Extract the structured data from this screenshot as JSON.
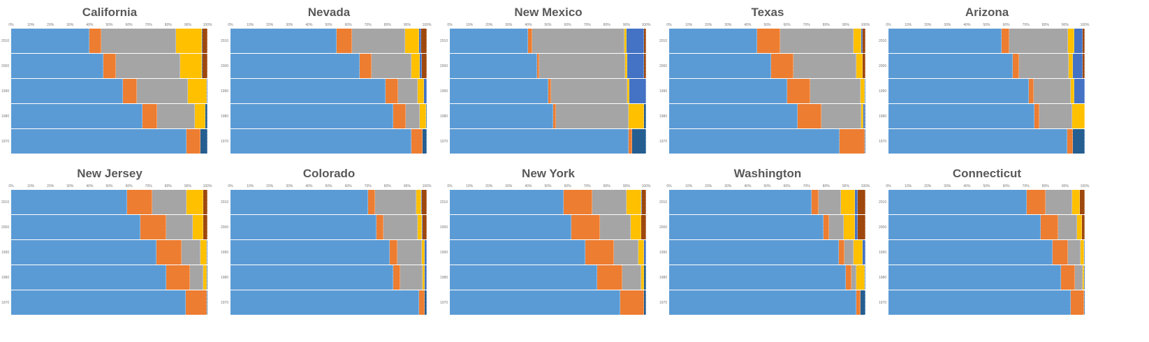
{
  "colors": [
    "#5B9BD5",
    "#ED7D31",
    "#A5A5A5",
    "#FFC000",
    "#4472C4",
    "#255E91",
    "#9E480E"
  ],
  "chart_data": {
    "type": "bar",
    "stacked": "percent",
    "orientation": "horizontal",
    "x_ticks": [
      "0%",
      "10%",
      "20%",
      "30%",
      "40%",
      "50%",
      "60%",
      "70%",
      "80%",
      "90%",
      "100%"
    ],
    "categories": [
      "2010",
      "2000",
      "1990",
      "1980",
      "1970"
    ],
    "charts": [
      {
        "title": "California",
        "values": [
          [
            40,
            6,
            38,
            13,
            0,
            0.5,
            2.5
          ],
          [
            47,
            6.5,
            32.5,
            11,
            0,
            0.5,
            2.5
          ],
          [
            57,
            7,
            26,
            9.5,
            0.5,
            0,
            0
          ],
          [
            66.5,
            7.5,
            19,
            5.5,
            0,
            1,
            0
          ],
          [
            89.5,
            7,
            0,
            0,
            0,
            3.5,
            0
          ]
        ]
      },
      {
        "title": "Nevada",
        "values": [
          [
            54,
            8,
            27,
            7,
            1,
            0,
            3
          ],
          [
            66,
            6,
            20,
            4.5,
            1,
            0,
            2.5
          ],
          [
            79,
            6.5,
            10,
            3,
            1.5,
            0,
            0
          ],
          [
            83,
            6.5,
            7,
            3,
            0,
            0.5,
            0
          ],
          [
            92,
            6,
            0,
            0,
            0,
            2,
            0
          ]
        ]
      },
      {
        "title": "New Mexico",
        "values": [
          [
            40,
            2,
            47,
            1,
            9,
            0,
            1
          ],
          [
            44.5,
            1,
            44,
            1,
            8.5,
            0,
            1
          ],
          [
            50,
            1.5,
            39,
            1,
            8.5,
            0,
            0
          ],
          [
            52.5,
            1.5,
            37,
            8,
            0,
            1,
            0
          ],
          [
            91,
            2,
            0,
            0,
            0,
            7,
            0
          ]
        ]
      },
      {
        "title": "Texas",
        "values": [
          [
            45,
            11.5,
            37.5,
            4,
            0.5,
            0,
            1.5
          ],
          [
            52,
            11.5,
            32,
            3,
            0,
            0,
            1.5
          ],
          [
            60,
            12,
            25.5,
            2,
            0.5,
            0,
            0
          ],
          [
            65.5,
            12,
            20.5,
            1,
            0.5,
            0.5,
            0
          ],
          [
            87,
            12.5,
            0,
            0,
            0,
            0.5,
            0
          ]
        ]
      },
      {
        "title": "Arizona",
        "values": [
          [
            57.5,
            4,
            30,
            3,
            4.5,
            0,
            1
          ],
          [
            63.5,
            3,
            25.5,
            2,
            5,
            0,
            1
          ],
          [
            71.5,
            2.5,
            19,
            1.5,
            5.5,
            0,
            0
          ],
          [
            74.5,
            2.5,
            16.5,
            6.5,
            0,
            0,
            0
          ],
          [
            91,
            3,
            0,
            0,
            0,
            6,
            0
          ]
        ]
      },
      {
        "title": "New Jersey",
        "values": [
          [
            59,
            13,
            17.5,
            8.5,
            0,
            0,
            2
          ],
          [
            66,
            13,
            13.5,
            5.5,
            0,
            0,
            2
          ],
          [
            74,
            13,
            9.5,
            3,
            0.5,
            0,
            0
          ],
          [
            79,
            12,
            7,
            1.5,
            0,
            0.5,
            0
          ],
          [
            89,
            10.5,
            0,
            0,
            0,
            0.5,
            0
          ]
        ]
      },
      {
        "title": "Colorado",
        "values": [
          [
            70,
            3.5,
            21,
            2.5,
            0.5,
            0,
            2.5
          ],
          [
            74.5,
            3.5,
            17.5,
            2,
            0.5,
            0,
            2
          ],
          [
            81,
            4,
            12.5,
            1.5,
            1,
            0,
            0
          ],
          [
            83,
            3.5,
            11.5,
            1,
            1,
            0,
            0
          ],
          [
            96,
            3,
            0,
            0,
            0,
            1,
            0
          ]
        ]
      },
      {
        "title": "New York",
        "values": [
          [
            58,
            14.5,
            17.5,
            7.5,
            0.5,
            0,
            2
          ],
          [
            62,
            14.5,
            15.5,
            5.5,
            0,
            0,
            2.5
          ],
          [
            69,
            14.5,
            12.5,
            3,
            1,
            0,
            0
          ],
          [
            75,
            13,
            9.5,
            1.5,
            0,
            1,
            0
          ],
          [
            87,
            12,
            0,
            0,
            0,
            1,
            0
          ]
        ]
      },
      {
        "title": "Washington",
        "values": [
          [
            72.5,
            3.5,
            11.5,
            7,
            1.5,
            0,
            4
          ],
          [
            78.5,
            3,
            7.5,
            5.5,
            1.5,
            0,
            4
          ],
          [
            86.5,
            3,
            4.5,
            4.5,
            1.5,
            0,
            0
          ],
          [
            90,
            3,
            2.5,
            4,
            0.5,
            0,
            0
          ],
          [
            95.5,
            2,
            0,
            0,
            0,
            2.5,
            0
          ]
        ]
      },
      {
        "title": "Connecticut",
        "values": [
          [
            70.5,
            9.5,
            13.5,
            4,
            0,
            0,
            2.5
          ],
          [
            77.5,
            9,
            9.5,
            2.5,
            0,
            0,
            1.5
          ],
          [
            83.5,
            8,
            6.5,
            1.5,
            0.5,
            0,
            0
          ],
          [
            88,
            7,
            4,
            0.5,
            0,
            0.5,
            0
          ],
          [
            93,
            6.5,
            0,
            0,
            0,
            0.5,
            0
          ]
        ]
      }
    ]
  }
}
